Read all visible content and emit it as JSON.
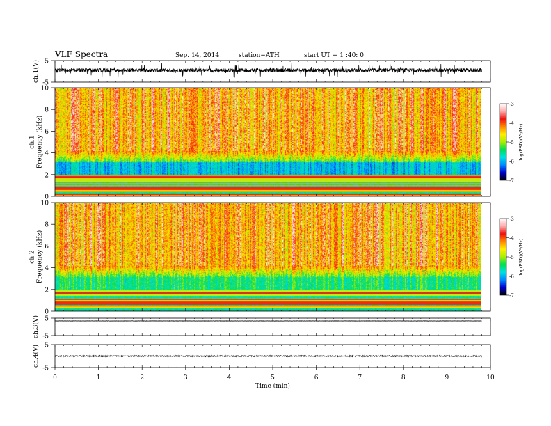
{
  "header": {
    "title": "VLF  Spectra",
    "date": "Sep. 14, 2014",
    "station": "station=ATH",
    "start": "start  UT =   1 :40: 0"
  },
  "chart_data": [
    {
      "type": "line",
      "panel": "ch1-waveform",
      "ylabel": "ch.1(V)",
      "ylim": [
        -5,
        5
      ],
      "yticks": [
        "5",
        "-5"
      ],
      "xlim": [
        0,
        10
      ],
      "x_end": 9.8,
      "level": 0.5,
      "noise": 0.9,
      "color": "#000000"
    },
    {
      "type": "heatmap",
      "panel": "ch1-spectrogram",
      "ylabel_lines": [
        "ch.1",
        "Frequency  (kHz)"
      ],
      "ylim": [
        0,
        10
      ],
      "yticks": [
        "0",
        "2",
        "4",
        "6",
        "8",
        "10"
      ],
      "xlim": [
        0,
        10
      ],
      "x_end": 9.8,
      "colorbar": {
        "label": "log(PSD)(V²/Hz)",
        "range": [
          -7,
          -3
        ],
        "ticks": [
          "-3",
          "-4",
          "-5",
          "-6",
          "-7"
        ],
        "colors": [
          "#000000",
          "#0000cc",
          "#0088ff",
          "#00e0e0",
          "#00dd55",
          "#aaee00",
          "#ffee00",
          "#ff8800",
          "#ee1111",
          "#ffaaaa",
          "#ffffff"
        ]
      }
    },
    {
      "type": "heatmap",
      "panel": "ch2-spectrogram",
      "ylabel_lines": [
        "ch.2",
        "Frequency  (kHz)"
      ],
      "ylim": [
        0,
        10
      ],
      "yticks": [
        "0",
        "2",
        "4",
        "6",
        "8",
        "10"
      ],
      "xlim": [
        0,
        10
      ],
      "x_end": 9.8,
      "colorbar": {
        "label": "log(PSD)(V²/Hz)",
        "range": [
          -7,
          -3
        ],
        "ticks": [
          "-3",
          "-4",
          "-5",
          "-6",
          "-7"
        ],
        "colors": [
          "#000000",
          "#0000cc",
          "#0088ff",
          "#00e0e0",
          "#00dd55",
          "#aaee00",
          "#ffee00",
          "#ff8800",
          "#ee1111",
          "#ffaaaa",
          "#ffffff"
        ]
      }
    },
    {
      "type": "line",
      "panel": "ch3-waveform",
      "ylabel": "ch.3(V)",
      "ylim": [
        -5,
        5
      ],
      "yticks": [
        "5",
        "-5"
      ],
      "xlim": [
        0,
        10
      ],
      "x_end": 9.8,
      "level": 3.4,
      "noise": 0.08,
      "color": "#000000"
    },
    {
      "type": "line",
      "panel": "ch4-waveform",
      "ylabel": "ch.4(V)",
      "ylim": [
        -5,
        5
      ],
      "yticks": [
        "5",
        "-5"
      ],
      "xlim": [
        0,
        10
      ],
      "x_end": 9.8,
      "level": 0.0,
      "noise": 0.25,
      "color": "#000000"
    }
  ],
  "xaxis": {
    "label": "Time  (min)",
    "ticks": [
      "0",
      "1",
      "2",
      "3",
      "4",
      "5",
      "6",
      "7",
      "8",
      "9",
      "10"
    ]
  }
}
